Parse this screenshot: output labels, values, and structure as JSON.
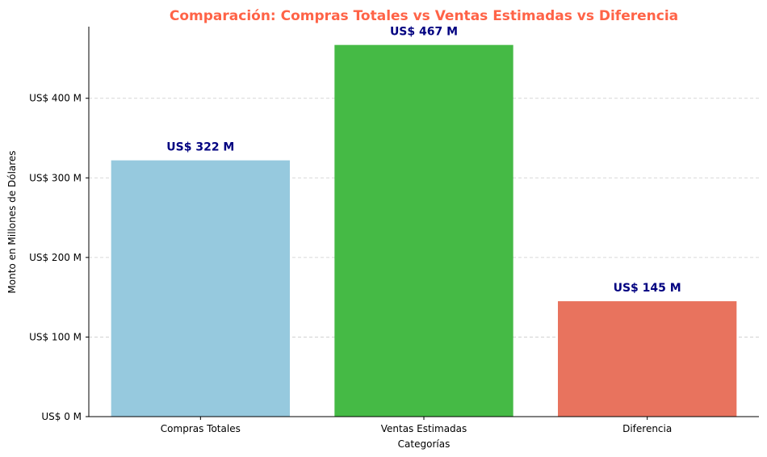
{
  "chart_data": {
    "type": "bar",
    "title": "Comparación: Compras Totales vs Ventas Estimadas vs Diferencia",
    "xlabel": "Categorías",
    "ylabel": "Monto en Millones de Dólares",
    "categories": [
      "Compras Totales",
      "Ventas Estimadas",
      "Diferencia"
    ],
    "values": [
      322,
      467,
      145
    ],
    "data_labels": [
      "US$ 322 M",
      "US$ 467 M",
      "US$ 145 M"
    ],
    "bar_colors": [
      "#96c9de",
      "#45ba45",
      "#e8735e"
    ],
    "ylim": [
      0,
      490
    ],
    "yticks": [
      0,
      100,
      200,
      300,
      400
    ],
    "ytick_labels": [
      "US$ 0 M",
      "US$ 100 M",
      "US$ 200 M",
      "US$ 300 M",
      "US$ 400 M"
    ],
    "grid": "y-dashed",
    "title_color": "#ff6347",
    "data_label_color": "#000080"
  }
}
